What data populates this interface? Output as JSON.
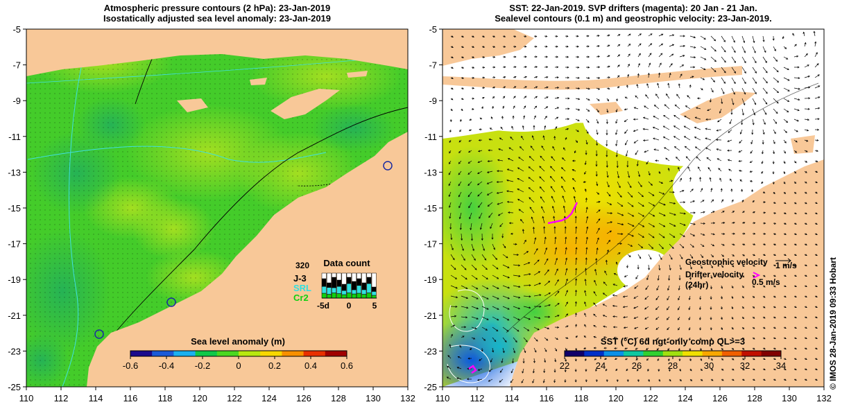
{
  "left_panel": {
    "title_line1": "Atmospheric pressure contours (2 hPa): 23-Jan-2019",
    "title_line2": "Isostatically adjusted sea level anomaly: 23-Jan-2019",
    "colorbar_label": "Sea level anomaly (m)",
    "colorbar_ticks": [
      "-0.6",
      "-0.4",
      "-0.2",
      "0",
      "0.2",
      "0.4",
      "0.6"
    ],
    "colorbar_colors": [
      "#1a0a8c",
      "#1a5ad8",
      "#19b0f0",
      "#10c848",
      "#4ad820",
      "#b8e810",
      "#f8d800",
      "#f89000",
      "#e83000",
      "#a00000"
    ],
    "data_count": {
      "title": "Data count",
      "max_label": "320",
      "missions": [
        {
          "name": "J-3",
          "color": "#000000"
        },
        {
          "name": "SRL",
          "color": "#30e0e0"
        },
        {
          "name": "Cr2",
          "color": "#10d010"
        }
      ],
      "x_ticks": [
        "-5d",
        "0",
        "5"
      ]
    }
  },
  "right_panel": {
    "title_line1": "SST: 22-Jan-2019. SVP drifters (magenta): 20 Jan - 21 Jan.",
    "title_line2": "Sealevel contours (0.1 m) and geostrophic velocity: 23-Jan-2019.",
    "colorbar_label": "SST (°C) 6d ngt-only comp QL>=3",
    "colorbar_ticks": [
      "22",
      "24",
      "26",
      "28",
      "30",
      "32",
      "34"
    ],
    "colorbar_colors": [
      "#10006a",
      "#0030c8",
      "#0a90e8",
      "#10c8a0",
      "#30d030",
      "#a0e010",
      "#f0e000",
      "#f8a800",
      "#f06000",
      "#c01000",
      "#800000"
    ],
    "legend": {
      "geostrophic_label": "Geostrophic velocity",
      "geostrophic_scale": "1 m/s",
      "drifter_label": "Drifter velocity",
      "drifter_period": "(24hr)",
      "drifter_scale": "0.5 m/s"
    }
  },
  "axes": {
    "x_ticks": [
      "110",
      "112",
      "114",
      "116",
      "118",
      "120",
      "122",
      "124",
      "126",
      "128",
      "130",
      "132"
    ],
    "y_ticks": [
      "-5",
      "-7",
      "-9",
      "-11",
      "-13",
      "-15",
      "-17",
      "-19",
      "-21",
      "-23",
      "-25"
    ],
    "lon_range": [
      110,
      132
    ],
    "lat_range": [
      -25,
      -5
    ]
  },
  "credit": "© IMOS 28-Jan-2019 09:33 Hobart",
  "colors": {
    "land": "#f8c898",
    "sla_base": "#44cc2a",
    "contour": "#000000",
    "drifter": "#ff00ff"
  }
}
